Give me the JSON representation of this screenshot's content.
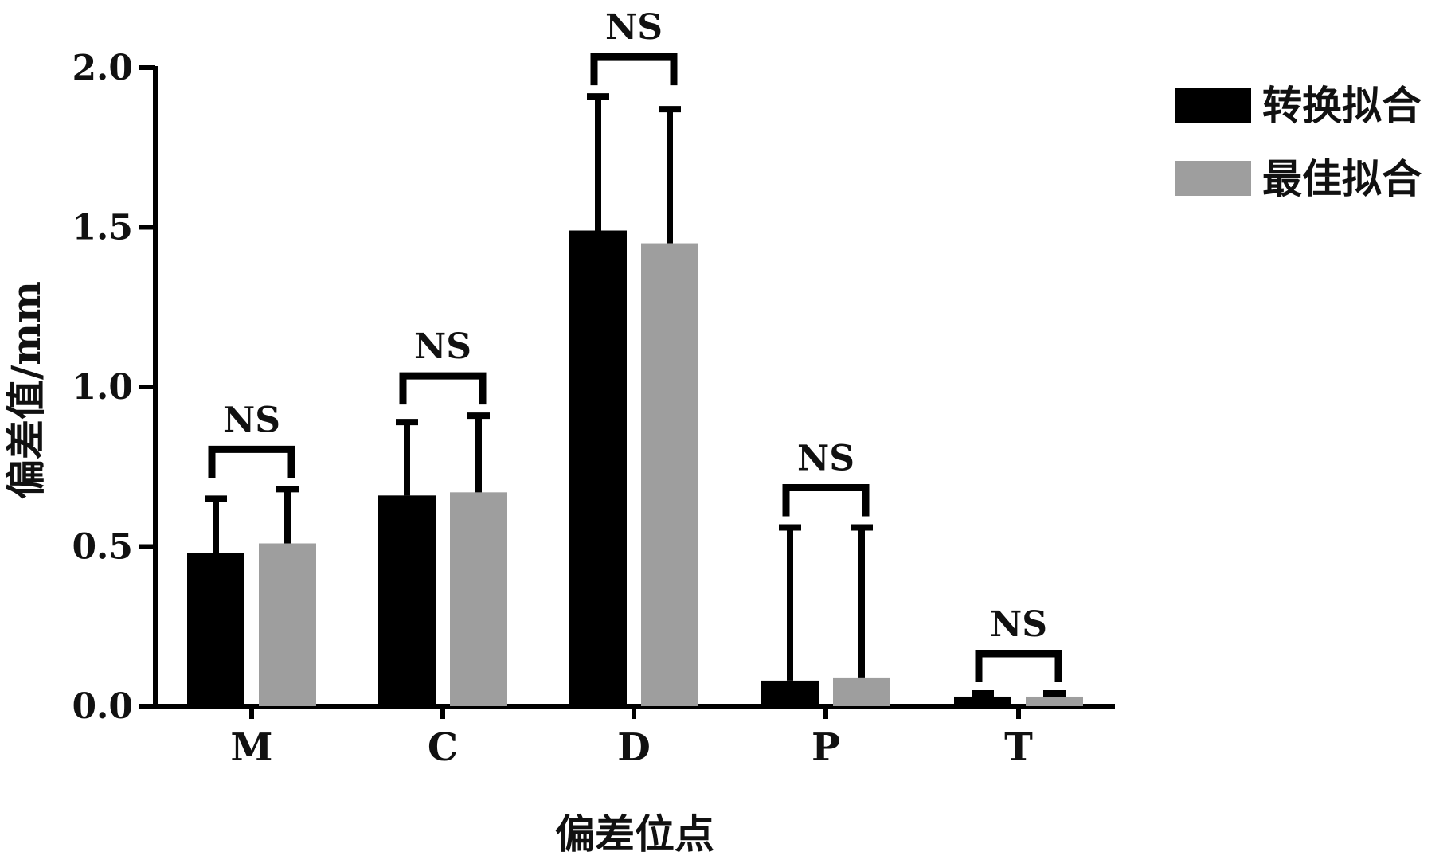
{
  "chart_data": {
    "type": "bar",
    "title": "",
    "xlabel": "偏差位点",
    "ylabel": "偏差值/mm",
    "categories": [
      "M",
      "C",
      "D",
      "P",
      "T"
    ],
    "ylim": [
      0,
      2.0
    ],
    "yticks": [
      "0.0",
      "0.5",
      "1.0",
      "1.5",
      "2.0"
    ],
    "series": [
      {
        "name": "转换拟合",
        "color": "#000000",
        "values": [
          0.48,
          0.66,
          1.49,
          0.08,
          0.03
        ],
        "errors": [
          0.17,
          0.23,
          0.42,
          0.48,
          0.01
        ]
      },
      {
        "name": "最佳拟合",
        "color": "#9e9e9e",
        "values": [
          0.51,
          0.67,
          1.45,
          0.09,
          0.03
        ],
        "errors": [
          0.17,
          0.24,
          0.42,
          0.47,
          0.01
        ]
      }
    ],
    "significance": [
      "NS",
      "NS",
      "NS",
      "NS",
      "NS"
    ],
    "legend_position": "top-right",
    "grid": false
  }
}
